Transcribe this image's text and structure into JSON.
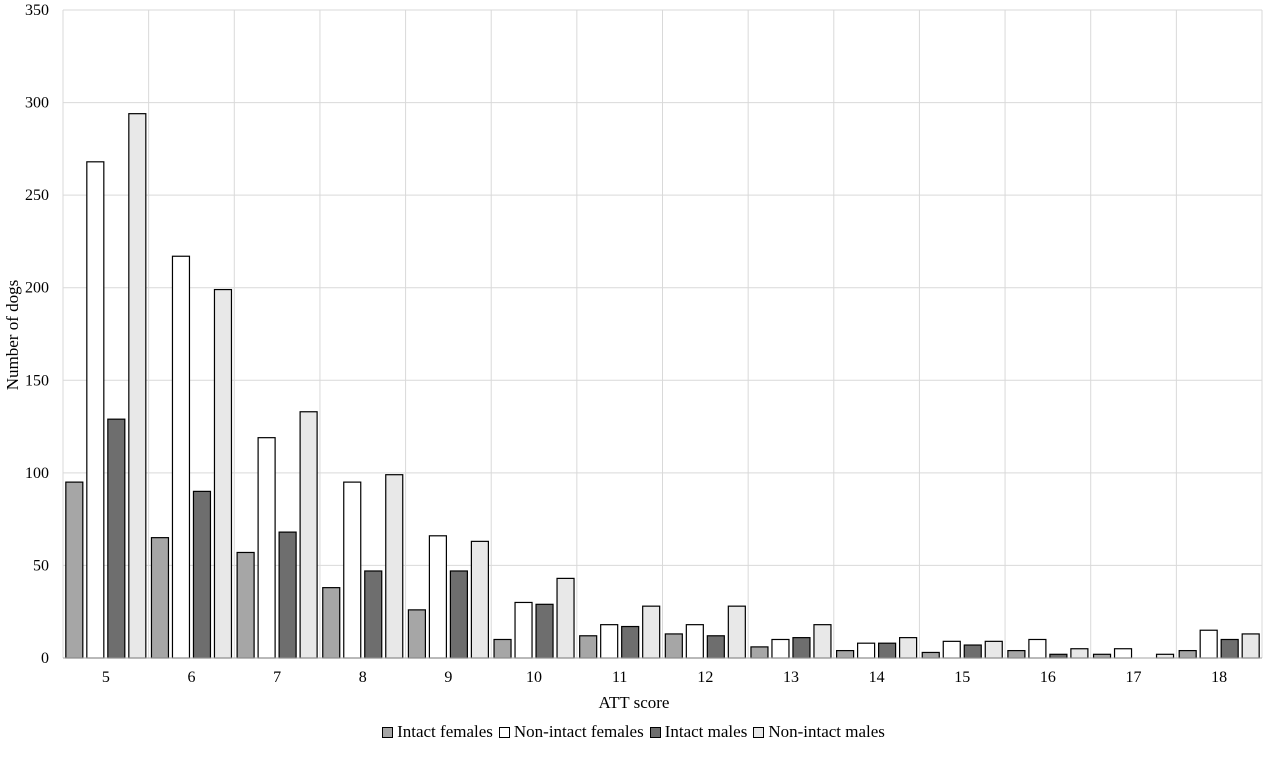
{
  "chart_data": {
    "type": "bar",
    "xlabel": "ATT score",
    "ylabel": "Number of dogs",
    "ylim": [
      0,
      350
    ],
    "yticks": [
      0,
      50,
      100,
      150,
      200,
      250,
      300,
      350
    ],
    "grid": true,
    "legend_position": "bottom",
    "categories": [
      "5",
      "6",
      "7",
      "8",
      "9",
      "10",
      "11",
      "12",
      "13",
      "14",
      "15",
      "16",
      "17",
      "18"
    ],
    "series": [
      {
        "name": "Intact females",
        "color": "#a6a6a6",
        "values": [
          95,
          65,
          57,
          38,
          26,
          10,
          12,
          13,
          6,
          4,
          3,
          4,
          2,
          4
        ]
      },
      {
        "name": "Non-intact females",
        "color": "#ffffff",
        "values": [
          268,
          217,
          119,
          95,
          66,
          30,
          18,
          18,
          10,
          8,
          9,
          10,
          5,
          15
        ]
      },
      {
        "name": "Intact males",
        "color": "#6e6e6e",
        "values": [
          129,
          90,
          68,
          47,
          47,
          29,
          17,
          12,
          11,
          8,
          7,
          2,
          0,
          10
        ]
      },
      {
        "name": "Non-intact males",
        "color": "#e8e8e8",
        "values": [
          294,
          199,
          133,
          99,
          63,
          43,
          28,
          28,
          18,
          11,
          9,
          5,
          2,
          13
        ]
      }
    ]
  }
}
